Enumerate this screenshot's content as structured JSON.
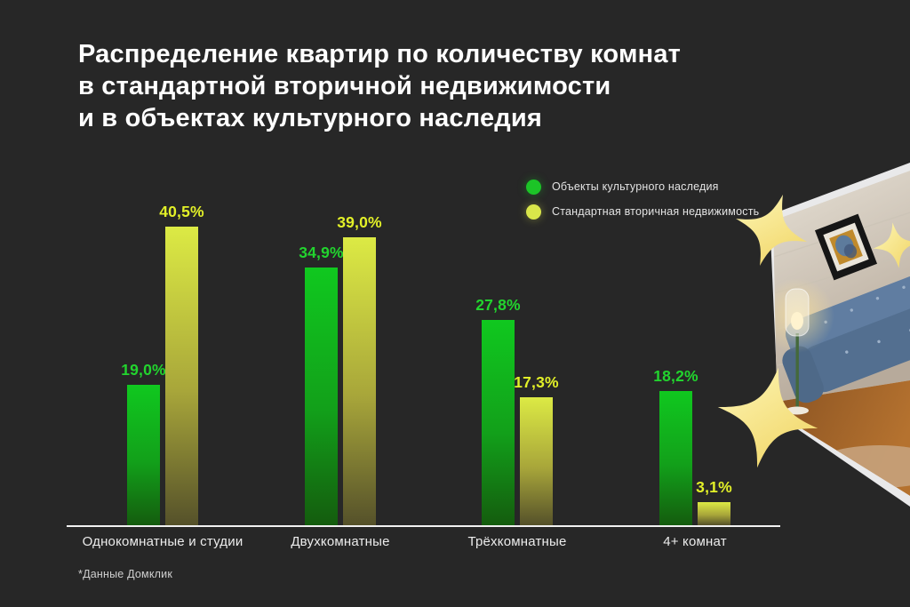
{
  "page": {
    "background": "#272727"
  },
  "title": {
    "line1": "Распределение квартир по количеству комнат",
    "line2": "в стандартной вторичной недвижимости",
    "line3": "и в объектах культурного наследия"
  },
  "legend": {
    "items": [
      {
        "label": "Объекты культурного наследия",
        "color": "#1cc427"
      },
      {
        "label": "Стандартная вторичная недвижимость",
        "color": "#d9e64a"
      }
    ]
  },
  "chart_data": {
    "type": "bar",
    "title": "Распределение квартир по количеству комнат в стандартной вторичной недвижимости и в объектах культурного наследия",
    "categories": [
      "Однокомнатные и студии",
      "Двухкомнатные",
      "Трёхкомнатные",
      "4+ комнат"
    ],
    "series": [
      {
        "name": "Объекты культурного наследия",
        "values": [
          19.0,
          34.9,
          27.8,
          18.2
        ],
        "labels": [
          "19,0%",
          "34,9%",
          "27,8%",
          "18,2%"
        ],
        "color_top": "#10c81f",
        "color_mid": "#12a01a",
        "color_bottom": "#145c0e",
        "label_color": "#22d42e"
      },
      {
        "name": "Стандартная вторичная недвижимость",
        "values": [
          40.5,
          39.0,
          17.3,
          3.1
        ],
        "labels": [
          "40,5%",
          "39,0%",
          "17,3%",
          "3,1%"
        ],
        "color_top": "#dcea44",
        "color_mid": "#a8a63a",
        "color_bottom": "#55512a",
        "label_color": "#e2f028"
      }
    ],
    "ylim": [
      0,
      45
    ],
    "value_suffix": "%",
    "grid": false,
    "legend_position": "top-right",
    "baseline_color": "#f1f1f1"
  },
  "footnote": {
    "text": "*Данные Домклик"
  },
  "decoration": {
    "star_color": "#f5dd74",
    "room_wall": "#ded8cc",
    "room_floor": "#a9682c",
    "sofa_color": "#5c799e"
  }
}
